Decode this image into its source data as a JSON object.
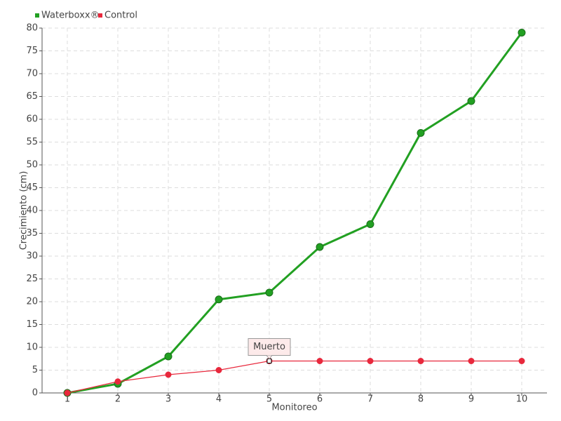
{
  "chart_data": {
    "type": "line",
    "y_label": "Crecimiento (cm)",
    "x_label": "Monitoreo",
    "categories": [
      "1",
      "2",
      "3",
      "4",
      "5",
      "6",
      "7",
      "8",
      "9",
      "10"
    ],
    "series": [
      {
        "name": "Waterboxx®",
        "color": "#22a022",
        "values": [
          0,
          2,
          8,
          20.5,
          22,
          32,
          37,
          57,
          64,
          79
        ]
      },
      {
        "name": "Control",
        "color": "#e8283c",
        "values": [
          0,
          2.5,
          4,
          5,
          7,
          7,
          7,
          7,
          7,
          7
        ]
      }
    ],
    "ylim": [
      0,
      80
    ],
    "yticks": [
      0,
      5,
      10,
      15,
      20,
      25,
      30,
      35,
      40,
      45,
      50,
      55,
      60,
      65,
      70,
      75,
      80
    ],
    "grid": true,
    "legend": "top-left",
    "annotations": [
      {
        "text": "Muerto",
        "series": "Control",
        "x": "5"
      }
    ]
  }
}
